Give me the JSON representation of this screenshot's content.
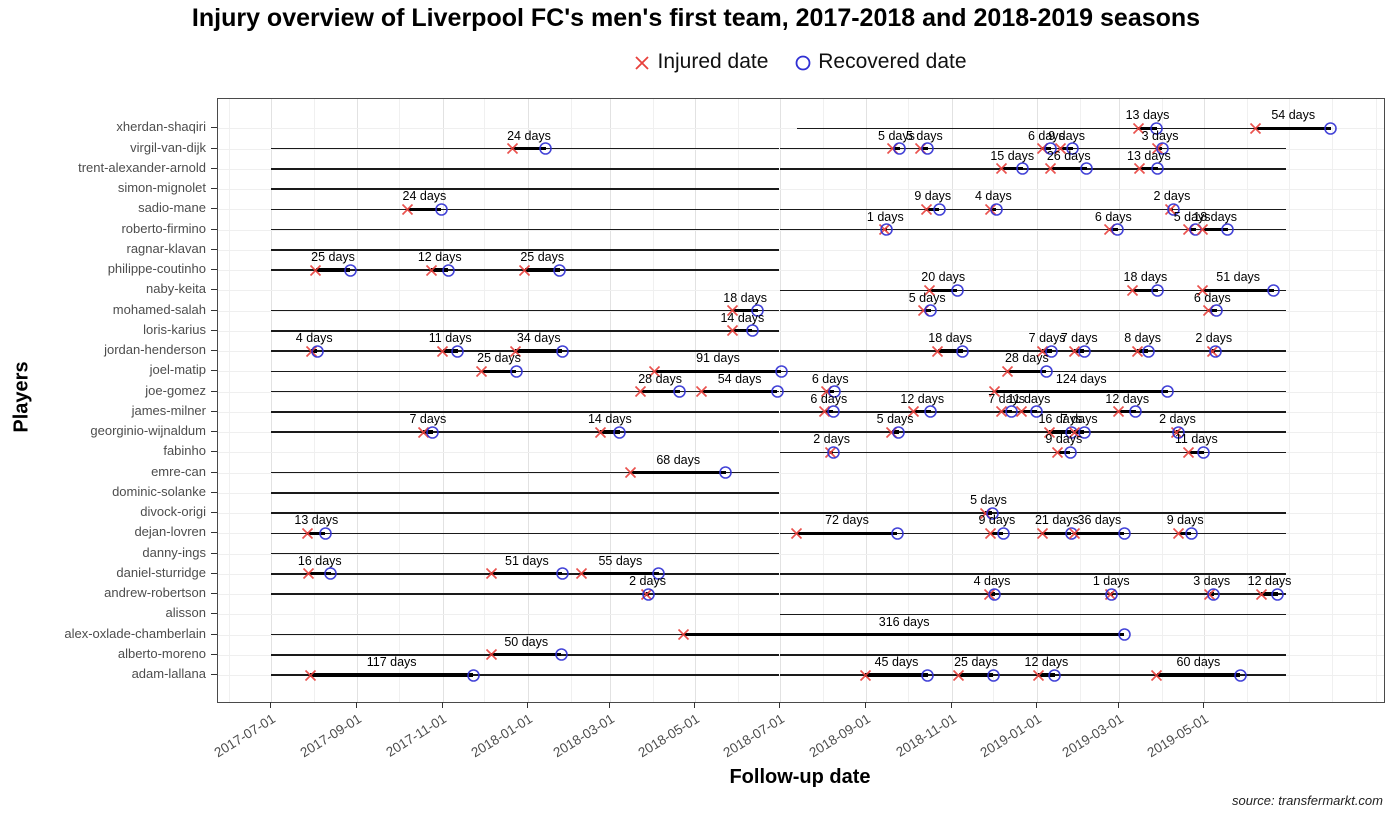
{
  "title": "Injury overview of Liverpool FC's men's first team, 2017-2018 and 2018-2019 seasons",
  "legend": {
    "injured_label": "Injured date",
    "recovered_label": "Recovered date"
  },
  "axes": {
    "x_label": "Follow-up date",
    "y_label": "Players",
    "x_ticks": [
      "2017-07-01",
      "2017-09-01",
      "2017-11-01",
      "2018-01-01",
      "2018-03-01",
      "2018-05-01",
      "2018-07-01",
      "2018-09-01",
      "2018-11-01",
      "2019-01-01",
      "2019-03-01",
      "2019-05-01"
    ]
  },
  "caption": "source: transfermarkt.com",
  "colors": {
    "injured": "#e8413c",
    "recovered": "#2f2fd3",
    "line": "#1a1a1a"
  },
  "chart_data": {
    "type": "timeline",
    "origin_date": "2017-07-01",
    "grid_months_range": [
      "2017-06-01",
      "2019-09-01"
    ],
    "players": [
      {
        "name": "xherdan-shaqiri",
        "follow_up": [
          [
            "2018-07-13",
            "2019-07-31"
          ]
        ],
        "injuries": [
          {
            "start": "2019-03-15",
            "days": 13,
            "label": "13 days"
          },
          {
            "start": "2019-06-07",
            "days": 54,
            "label": "54 days"
          }
        ]
      },
      {
        "name": "virgil-van-dijk",
        "follow_up": [
          [
            "2017-07-01",
            "2018-06-30"
          ],
          [
            "2018-07-01",
            "2019-06-29"
          ]
        ],
        "injuries": [
          {
            "start": "2017-12-21",
            "days": 24,
            "label": "24 days"
          },
          {
            "start": "2018-09-20",
            "days": 5,
            "label": "5 days"
          },
          {
            "start": "2018-10-10",
            "days": 5,
            "label": "5 days"
          },
          {
            "start": "2019-01-05",
            "days": 6,
            "label": "6 days"
          },
          {
            "start": "2019-01-18",
            "days": 9,
            "label": "9 days"
          },
          {
            "start": "2019-03-29",
            "days": 3,
            "label": "3 days"
          }
        ]
      },
      {
        "name": "trent-alexander-arnold",
        "follow_up": [
          [
            "2017-07-01",
            "2018-06-30"
          ],
          [
            "2018-07-01",
            "2019-06-29"
          ]
        ],
        "injuries": [
          {
            "start": "2018-12-07",
            "days": 15,
            "label": "15 days"
          },
          {
            "start": "2019-01-11",
            "days": 26,
            "label": "26 days"
          },
          {
            "start": "2019-03-16",
            "days": 13,
            "label": "13 days"
          }
        ]
      },
      {
        "name": "simon-mignolet",
        "follow_up": [
          [
            "2017-07-01",
            "2018-06-30"
          ]
        ],
        "injuries": []
      },
      {
        "name": "sadio-mane",
        "follow_up": [
          [
            "2017-07-01",
            "2018-06-30"
          ],
          [
            "2018-07-01",
            "2019-06-29"
          ]
        ],
        "injuries": [
          {
            "start": "2017-10-07",
            "days": 24,
            "label": "24 days"
          },
          {
            "start": "2018-10-14",
            "days": 9,
            "label": "9 days"
          },
          {
            "start": "2018-11-29",
            "days": 4,
            "label": "4 days"
          },
          {
            "start": "2019-04-07",
            "days": 2,
            "label": "2 days"
          }
        ]
      },
      {
        "name": "roberto-firmino",
        "follow_up": [
          [
            "2017-07-01",
            "2018-06-30"
          ],
          [
            "2018-07-01",
            "2019-06-29"
          ]
        ],
        "injuries": [
          {
            "start": "2018-09-14",
            "days": 1,
            "label": "1 days"
          },
          {
            "start": "2019-02-22",
            "days": 6,
            "label": "6 days"
          },
          {
            "start": "2019-04-20",
            "days": 5,
            "label": "5 days"
          },
          {
            "start": "2019-04-30",
            "days": 18,
            "label": "18 days"
          }
        ]
      },
      {
        "name": "ragnar-klavan",
        "follow_up": [
          [
            "2017-07-01",
            "2018-06-30"
          ]
        ],
        "injuries": []
      },
      {
        "name": "philippe-coutinho",
        "follow_up": [
          [
            "2017-07-01",
            "2018-06-30"
          ]
        ],
        "injuries": [
          {
            "start": "2017-08-02",
            "days": 25,
            "label": "25 days"
          },
          {
            "start": "2017-10-24",
            "days": 12,
            "label": "12 days"
          },
          {
            "start": "2017-12-30",
            "days": 25,
            "label": "25 days"
          }
        ]
      },
      {
        "name": "naby-keita",
        "follow_up": [
          [
            "2018-07-01",
            "2019-06-29"
          ]
        ],
        "injuries": [
          {
            "start": "2018-10-16",
            "days": 20,
            "label": "20 days"
          },
          {
            "start": "2019-03-11",
            "days": 18,
            "label": "18 days"
          },
          {
            "start": "2019-04-30",
            "days": 51,
            "label": "51 days"
          }
        ]
      },
      {
        "name": "mohamed-salah",
        "follow_up": [
          [
            "2017-07-01",
            "2018-06-30"
          ],
          [
            "2018-07-01",
            "2019-06-29"
          ]
        ],
        "injuries": [
          {
            "start": "2018-05-28",
            "days": 18,
            "label": "18 days"
          },
          {
            "start": "2018-10-12",
            "days": 5,
            "label": "5 days"
          },
          {
            "start": "2019-05-04",
            "days": 6,
            "label": "6 days"
          }
        ]
      },
      {
        "name": "loris-karius",
        "follow_up": [
          [
            "2017-07-01",
            "2018-06-30"
          ]
        ],
        "injuries": [
          {
            "start": "2018-05-28",
            "days": 14,
            "label": "14 days"
          }
        ]
      },
      {
        "name": "jordan-henderson",
        "follow_up": [
          [
            "2017-07-01",
            "2018-06-30"
          ],
          [
            "2018-07-01",
            "2019-06-29"
          ]
        ],
        "injuries": [
          {
            "start": "2017-07-30",
            "days": 4,
            "label": "4 days"
          },
          {
            "start": "2017-11-01",
            "days": 11,
            "label": "11 days"
          },
          {
            "start": "2017-12-23",
            "days": 34,
            "label": "34 days"
          },
          {
            "start": "2018-10-22",
            "days": 18,
            "label": "18 days"
          },
          {
            "start": "2019-01-05",
            "days": 7,
            "label": "7 days"
          },
          {
            "start": "2019-01-28",
            "days": 7,
            "label": "7 days"
          },
          {
            "start": "2019-03-14",
            "days": 8,
            "label": "8 days"
          },
          {
            "start": "2019-05-07",
            "days": 2,
            "label": "2 days"
          }
        ]
      },
      {
        "name": "joel-matip",
        "follow_up": [
          [
            "2017-07-01",
            "2018-06-30"
          ],
          [
            "2018-07-01",
            "2019-06-29"
          ]
        ],
        "injuries": [
          {
            "start": "2017-11-29",
            "days": 25,
            "label": "25 days"
          },
          {
            "start": "2018-04-02",
            "days": 91,
            "label": "91 days"
          },
          {
            "start": "2018-12-11",
            "days": 28,
            "label": "28 days"
          }
        ]
      },
      {
        "name": "joe-gomez",
        "follow_up": [
          [
            "2017-07-01",
            "2018-06-30"
          ],
          [
            "2018-07-01",
            "2019-06-29"
          ]
        ],
        "injuries": [
          {
            "start": "2018-03-23",
            "days": 28,
            "label": "28 days"
          },
          {
            "start": "2018-05-06",
            "days": 54,
            "label": "54 days"
          },
          {
            "start": "2018-08-03",
            "days": 6,
            "label": "6 days"
          },
          {
            "start": "2018-12-02",
            "days": 124,
            "label": "124 days"
          }
        ]
      },
      {
        "name": "james-milner",
        "follow_up": [
          [
            "2017-07-01",
            "2018-06-30"
          ],
          [
            "2018-07-01",
            "2019-06-29"
          ]
        ],
        "injuries": [
          {
            "start": "2018-08-02",
            "days": 6,
            "label": "6 days"
          },
          {
            "start": "2018-10-05",
            "days": 12,
            "label": "12 days"
          },
          {
            "start": "2018-12-07",
            "days": 7,
            "label": "7 days"
          },
          {
            "start": "2018-12-21",
            "days": 11,
            "label": "11 days"
          },
          {
            "start": "2019-03-01",
            "days": 12,
            "label": "12 days"
          }
        ]
      },
      {
        "name": "georginio-wijnaldum",
        "follow_up": [
          [
            "2017-07-01",
            "2018-06-30"
          ],
          [
            "2018-07-01",
            "2019-06-29"
          ]
        ],
        "injuries": [
          {
            "start": "2017-10-18",
            "days": 7,
            "label": "7 days"
          },
          {
            "start": "2018-02-22",
            "days": 14,
            "label": "14 days"
          },
          {
            "start": "2018-09-19",
            "days": 5,
            "label": "5 days"
          },
          {
            "start": "2019-01-10",
            "days": 16,
            "label": "16 days"
          },
          {
            "start": "2019-01-28",
            "days": 7,
            "label": "7 days"
          },
          {
            "start": "2019-04-11",
            "days": 2,
            "label": "2 days"
          }
        ]
      },
      {
        "name": "fabinho",
        "follow_up": [
          [
            "2018-07-01",
            "2019-06-29"
          ]
        ],
        "injuries": [
          {
            "start": "2018-08-06",
            "days": 2,
            "label": "2 days"
          },
          {
            "start": "2019-01-16",
            "days": 9,
            "label": "9 days"
          },
          {
            "start": "2019-04-20",
            "days": 11,
            "label": "11 days"
          }
        ]
      },
      {
        "name": "emre-can",
        "follow_up": [
          [
            "2017-07-01",
            "2018-06-30"
          ]
        ],
        "injuries": [
          {
            "start": "2018-03-16",
            "days": 68,
            "label": "68 days"
          }
        ]
      },
      {
        "name": "dominic-solanke",
        "follow_up": [
          [
            "2017-07-01",
            "2018-06-30"
          ]
        ],
        "injuries": []
      },
      {
        "name": "divock-origi",
        "follow_up": [
          [
            "2017-07-01",
            "2018-06-30"
          ],
          [
            "2018-07-01",
            "2019-06-29"
          ]
        ],
        "injuries": [
          {
            "start": "2018-11-25",
            "days": 5,
            "label": "5 days"
          }
        ]
      },
      {
        "name": "dejan-lovren",
        "follow_up": [
          [
            "2017-07-01",
            "2018-06-30"
          ],
          [
            "2018-07-01",
            "2019-06-29"
          ]
        ],
        "injuries": [
          {
            "start": "2017-07-27",
            "days": 13,
            "label": "13 days"
          },
          {
            "start": "2018-07-13",
            "days": 72,
            "label": "72 days"
          },
          {
            "start": "2018-11-29",
            "days": 9,
            "label": "9 days"
          },
          {
            "start": "2019-01-05",
            "days": 21,
            "label": "21 days"
          },
          {
            "start": "2019-01-28",
            "days": 36,
            "label": "36 days"
          },
          {
            "start": "2019-04-13",
            "days": 9,
            "label": "9 days"
          }
        ]
      },
      {
        "name": "danny-ings",
        "follow_up": [
          [
            "2017-07-01",
            "2018-06-30"
          ]
        ],
        "injuries": []
      },
      {
        "name": "daniel-sturridge",
        "follow_up": [
          [
            "2017-07-01",
            "2018-06-30"
          ],
          [
            "2018-07-01",
            "2019-06-29"
          ]
        ],
        "injuries": [
          {
            "start": "2017-07-28",
            "days": 16,
            "label": "16 days"
          },
          {
            "start": "2017-12-06",
            "days": 51,
            "label": "51 days"
          },
          {
            "start": "2018-02-09",
            "days": 55,
            "label": "55 days"
          }
        ]
      },
      {
        "name": "andrew-robertson",
        "follow_up": [
          [
            "2017-07-01",
            "2018-06-30"
          ],
          [
            "2018-07-01",
            "2019-06-29"
          ]
        ],
        "injuries": [
          {
            "start": "2018-03-27",
            "days": 2,
            "label": "2 days"
          },
          {
            "start": "2018-11-28",
            "days": 4,
            "label": "4 days"
          },
          {
            "start": "2019-02-23",
            "days": 1,
            "label": "1 days"
          },
          {
            "start": "2019-05-05",
            "days": 3,
            "label": "3 days"
          },
          {
            "start": "2019-06-11",
            "days": 12,
            "label": "12 days"
          }
        ]
      },
      {
        "name": "alisson",
        "follow_up": [
          [
            "2018-07-01",
            "2019-06-29"
          ]
        ],
        "injuries": []
      },
      {
        "name": "alex-oxlade-chamberlain",
        "follow_up": [
          [
            "2017-07-01",
            "2019-03-05"
          ]
        ],
        "injuries": [
          {
            "start": "2018-04-23",
            "days": 316,
            "label": "316 days"
          }
        ]
      },
      {
        "name": "alberto-moreno",
        "follow_up": [
          [
            "2017-07-01",
            "2018-06-30"
          ],
          [
            "2018-07-01",
            "2019-06-29"
          ]
        ],
        "injuries": [
          {
            "start": "2017-12-06",
            "days": 50,
            "label": "50 days"
          }
        ]
      },
      {
        "name": "adam-lallana",
        "follow_up": [
          [
            "2017-07-01",
            "2018-06-30"
          ],
          [
            "2018-07-01",
            "2019-06-29"
          ]
        ],
        "injuries": [
          {
            "start": "2017-07-29",
            "days": 117,
            "label": "117 days"
          },
          {
            "start": "2018-08-31",
            "days": 45,
            "label": "45 days"
          },
          {
            "start": "2018-11-06",
            "days": 25,
            "label": "25 days"
          },
          {
            "start": "2019-01-02",
            "days": 12,
            "label": "12 days"
          },
          {
            "start": "2019-03-28",
            "days": 60,
            "label": "60 days"
          }
        ]
      }
    ]
  }
}
